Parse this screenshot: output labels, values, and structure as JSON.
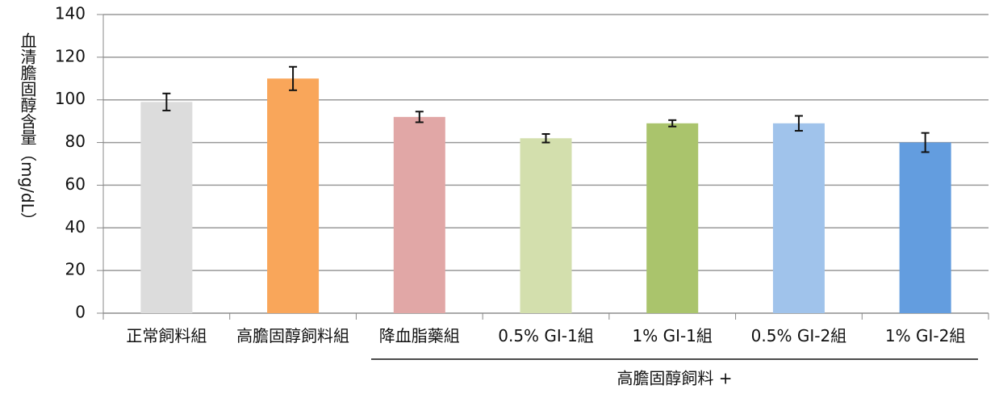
{
  "chart_data": {
    "type": "bar",
    "y_label": "血清膽固醇含量（mg/dL）",
    "categories": [
      "正常飼料組",
      "高膽固醇飼料組",
      "降血脂藥組",
      "0.5% GI-1組",
      "1% GI-1組",
      "0.5% GI-2組",
      "1% GI-2組"
    ],
    "values": [
      99,
      110,
      92,
      82,
      89,
      89,
      80
    ],
    "errors": [
      4,
      5.5,
      2.5,
      2,
      1.5,
      3.5,
      4.5
    ],
    "colors": [
      "#dcdcdc",
      "#f9a65a",
      "#e1a7a6",
      "#d3dfad",
      "#aac46c",
      "#a0c3eb",
      "#639ddf"
    ],
    "group_label": "高膽固醇飼料 +",
    "ylim": [
      0,
      140
    ],
    "yticks": [
      0,
      20,
      40,
      60,
      80,
      100,
      120,
      140
    ],
    "grid": true
  }
}
